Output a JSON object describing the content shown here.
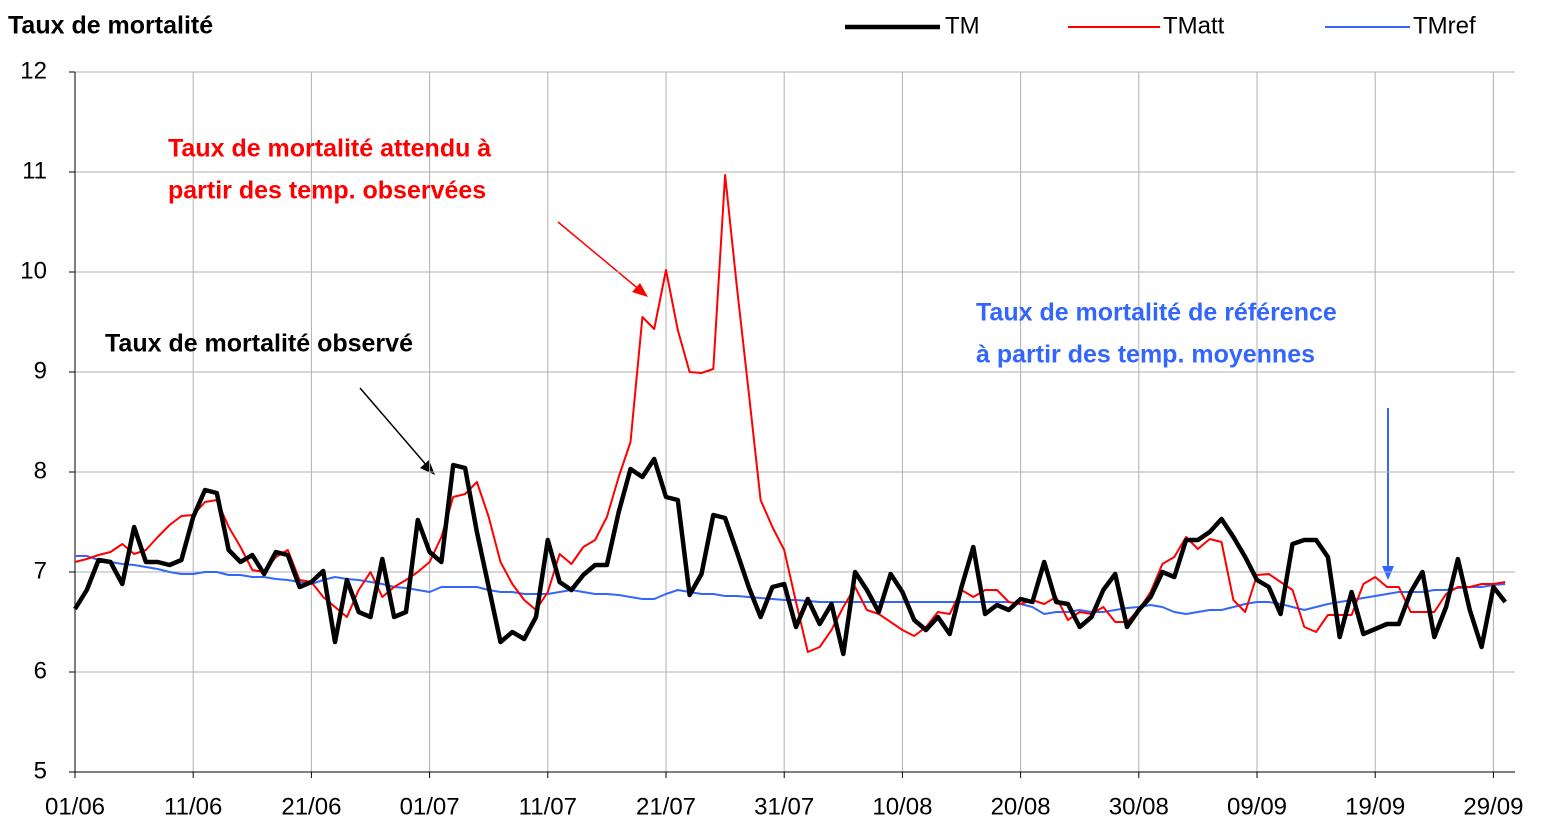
{
  "chart_data": {
    "type": "line",
    "title": "Taux de mortalité",
    "categories": [
      "01/06",
      null,
      null,
      null,
      null,
      null,
      null,
      null,
      null,
      null,
      "11/06",
      null,
      null,
      null,
      null,
      null,
      null,
      null,
      null,
      null,
      "21/06",
      null,
      null,
      null,
      null,
      null,
      null,
      null,
      null,
      null,
      "01/07",
      null,
      null,
      null,
      null,
      null,
      null,
      null,
      null,
      null,
      "11/07",
      null,
      null,
      null,
      null,
      null,
      null,
      null,
      null,
      null,
      "21/07",
      null,
      null,
      null,
      null,
      null,
      null,
      null,
      null,
      null,
      "31/07",
      null,
      null,
      null,
      null,
      null,
      null,
      null,
      null,
      null,
      "10/08",
      null,
      null,
      null,
      null,
      null,
      null,
      null,
      null,
      null,
      "20/08",
      null,
      null,
      null,
      null,
      null,
      null,
      null,
      null,
      null,
      "30/08",
      null,
      null,
      null,
      null,
      null,
      null,
      null,
      null,
      null,
      "09/09",
      null,
      null,
      null,
      null,
      null,
      null,
      null,
      null,
      null,
      "19/09",
      null,
      null,
      null,
      null,
      null,
      null,
      null,
      null,
      null,
      "29/09",
      null
    ],
    "series": [
      {
        "name": "TM",
        "color": "#000000",
        "values": [
          6.63,
          6.82,
          7.12,
          7.1,
          6.88,
          7.45,
          7.1,
          7.1,
          7.07,
          7.12,
          7.55,
          7.82,
          7.79,
          7.22,
          7.1,
          7.17,
          6.98,
          7.2,
          7.17,
          6.85,
          6.9,
          7.01,
          6.3,
          6.92,
          6.6,
          6.55,
          7.13,
          6.55,
          6.6,
          7.52,
          7.2,
          7.1,
          8.07,
          8.04,
          7.4,
          6.85,
          6.3,
          6.4,
          6.33,
          6.55,
          7.32,
          6.9,
          6.82,
          6.97,
          7.07,
          7.07,
          7.6,
          8.03,
          7.95,
          8.13,
          7.75,
          7.72,
          6.77,
          6.98,
          7.57,
          7.54,
          7.2,
          6.85,
          6.55,
          6.85,
          6.88,
          6.45,
          6.73,
          6.48,
          6.68,
          6.18,
          7.0,
          6.82,
          6.6,
          6.98,
          6.8,
          6.52,
          6.42,
          6.55,
          6.38,
          6.85,
          7.25,
          6.58,
          6.67,
          6.62,
          6.73,
          6.7,
          7.1,
          6.7,
          6.68,
          6.45,
          6.55,
          6.82,
          6.98,
          6.45,
          6.62,
          6.75,
          7.0,
          6.95,
          7.32,
          7.32,
          7.4,
          7.53,
          7.35,
          7.15,
          6.92,
          6.85,
          6.58,
          7.28,
          7.32,
          7.32,
          7.15,
          6.35,
          6.8,
          6.38,
          6.43,
          6.48,
          6.48,
          6.8,
          7.0,
          6.35,
          6.65,
          7.13,
          6.62,
          6.25,
          6.85,
          6.7
        ]
      },
      {
        "name": "TMatt",
        "color": "#ff0000",
        "values": [
          7.1,
          7.13,
          7.17,
          7.2,
          7.28,
          7.18,
          7.22,
          7.35,
          7.47,
          7.56,
          7.57,
          7.7,
          7.72,
          7.45,
          7.25,
          7.02,
          7.0,
          7.15,
          7.22,
          6.92,
          6.9,
          6.75,
          6.65,
          6.55,
          6.82,
          7.0,
          6.75,
          6.85,
          6.92,
          7.0,
          7.1,
          7.35,
          7.75,
          7.78,
          7.9,
          7.55,
          7.1,
          6.88,
          6.72,
          6.62,
          6.8,
          7.18,
          7.08,
          7.25,
          7.32,
          7.55,
          7.95,
          8.3,
          9.55,
          9.43,
          10.02,
          9.42,
          9.0,
          8.99,
          9.03,
          10.97,
          9.85,
          8.8,
          7.72,
          7.45,
          7.22,
          6.7,
          6.2,
          6.25,
          6.42,
          6.65,
          6.85,
          6.62,
          6.58,
          6.5,
          6.42,
          6.36,
          6.45,
          6.6,
          6.58,
          6.82,
          6.75,
          6.82,
          6.82,
          6.7,
          6.68,
          6.72,
          6.68,
          6.75,
          6.52,
          6.6,
          6.58,
          6.65,
          6.5,
          6.5,
          6.62,
          6.8,
          7.08,
          7.15,
          7.35,
          7.23,
          7.33,
          7.3,
          6.72,
          6.6,
          6.97,
          6.98,
          6.9,
          6.82,
          6.45,
          6.4,
          6.57,
          6.57,
          6.57,
          6.88,
          6.95,
          6.85,
          6.85,
          6.6,
          6.6,
          6.6,
          6.78,
          6.85,
          6.85,
          6.88,
          6.88,
          6.9
        ]
      },
      {
        "name": "TMref",
        "color": "#3366ff",
        "values": [
          7.16,
          7.16,
          7.12,
          7.1,
          7.08,
          7.07,
          7.05,
          7.03,
          7.0,
          6.98,
          6.98,
          7.0,
          7.0,
          6.97,
          6.97,
          6.95,
          6.95,
          6.93,
          6.92,
          6.9,
          6.88,
          6.92,
          6.95,
          6.93,
          6.92,
          6.9,
          6.88,
          6.85,
          6.84,
          6.82,
          6.8,
          6.85,
          6.85,
          6.85,
          6.85,
          6.82,
          6.8,
          6.8,
          6.78,
          6.78,
          6.78,
          6.8,
          6.82,
          6.8,
          6.78,
          6.78,
          6.77,
          6.75,
          6.73,
          6.73,
          6.78,
          6.82,
          6.8,
          6.78,
          6.78,
          6.76,
          6.76,
          6.75,
          6.74,
          6.73,
          6.72,
          6.72,
          6.71,
          6.7,
          6.7,
          6.7,
          6.7,
          6.7,
          6.7,
          6.7,
          6.7,
          6.7,
          6.7,
          6.7,
          6.7,
          6.7,
          6.7,
          6.7,
          6.7,
          6.7,
          6.68,
          6.65,
          6.58,
          6.6,
          6.6,
          6.62,
          6.6,
          6.6,
          6.62,
          6.64,
          6.65,
          6.67,
          6.65,
          6.6,
          6.58,
          6.6,
          6.62,
          6.62,
          6.65,
          6.68,
          6.7,
          6.7,
          6.68,
          6.65,
          6.62,
          6.65,
          6.68,
          6.7,
          6.72,
          6.74,
          6.76,
          6.78,
          6.8,
          6.8,
          6.8,
          6.82,
          6.82,
          6.84,
          6.85,
          6.85,
          6.87,
          6.88
        ]
      }
    ],
    "ylim": [
      5,
      12
    ],
    "yticks": [
      5,
      6,
      7,
      8,
      9,
      10,
      11,
      12
    ],
    "grid": true,
    "annotations": [
      {
        "lines": [
          "Taux de mortalité attendu à",
          "partir des temp. observées"
        ],
        "color": "#ff0000"
      },
      {
        "lines": [
          "Taux de mortalité observé"
        ],
        "color": "#000000"
      },
      {
        "lines": [
          "Taux de mortalité de référence",
          "à partir des temp. moyennes"
        ],
        "color": "#3366ff"
      }
    ]
  }
}
